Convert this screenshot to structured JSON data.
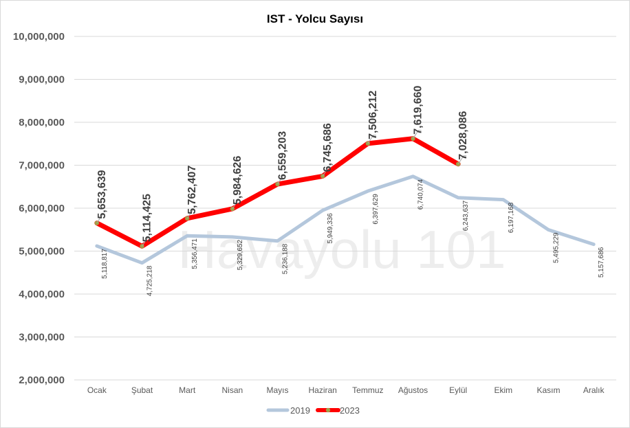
{
  "chart_data": {
    "type": "line",
    "title": "IST - Yolcu Sayısı",
    "categories": [
      "Ocak",
      "Şubat",
      "Mart",
      "Nisan",
      "Mayıs",
      "Haziran",
      "Temmuz",
      "Ağustos",
      "Eylül",
      "Ekim",
      "Kasım",
      "Aralık"
    ],
    "series": [
      {
        "name": "2019",
        "color": "#b4c7dc",
        "values": [
          5118817,
          4725218,
          5356471,
          5329652,
          5236188,
          5949336,
          6397629,
          6740074,
          6243637,
          6197168,
          5495229,
          5157686
        ],
        "labels": [
          "5,118,817",
          "4,725,218",
          "5,356,471",
          "5,329,652",
          "5,236,188",
          "5,949,336",
          "6,397,629",
          "6,740,074",
          "6,243,637",
          "6,197,168",
          "5,495,229",
          "5,157,686"
        ]
      },
      {
        "name": "2023",
        "color": "#ff0000",
        "marker_color": "#9fa24a",
        "values": [
          5653639,
          5114425,
          5762407,
          5984626,
          6559203,
          6745686,
          7506212,
          7619660,
          7028086,
          null,
          null,
          null
        ],
        "labels": [
          "5,653,639",
          "5,114,425",
          "5,762,407",
          "5,984,626",
          "6,559,203",
          "6,745,686",
          "7,506,212",
          "7,619,660",
          "7,028,086",
          "",
          "",
          ""
        ]
      }
    ],
    "ylim": [
      2000000,
      10000000
    ],
    "yticks": [
      "2,000,000",
      "3,000,000",
      "4,000,000",
      "5,000,000",
      "6,000,000",
      "7,000,000",
      "8,000,000",
      "9,000,000",
      "10,000,000"
    ],
    "ytick_values": [
      2000000,
      3000000,
      4000000,
      5000000,
      6000000,
      7000000,
      8000000,
      9000000,
      10000000
    ],
    "grid": true,
    "legend_position": "bottom",
    "xlabel": "",
    "ylabel": ""
  },
  "watermark": "Havayolu 101"
}
